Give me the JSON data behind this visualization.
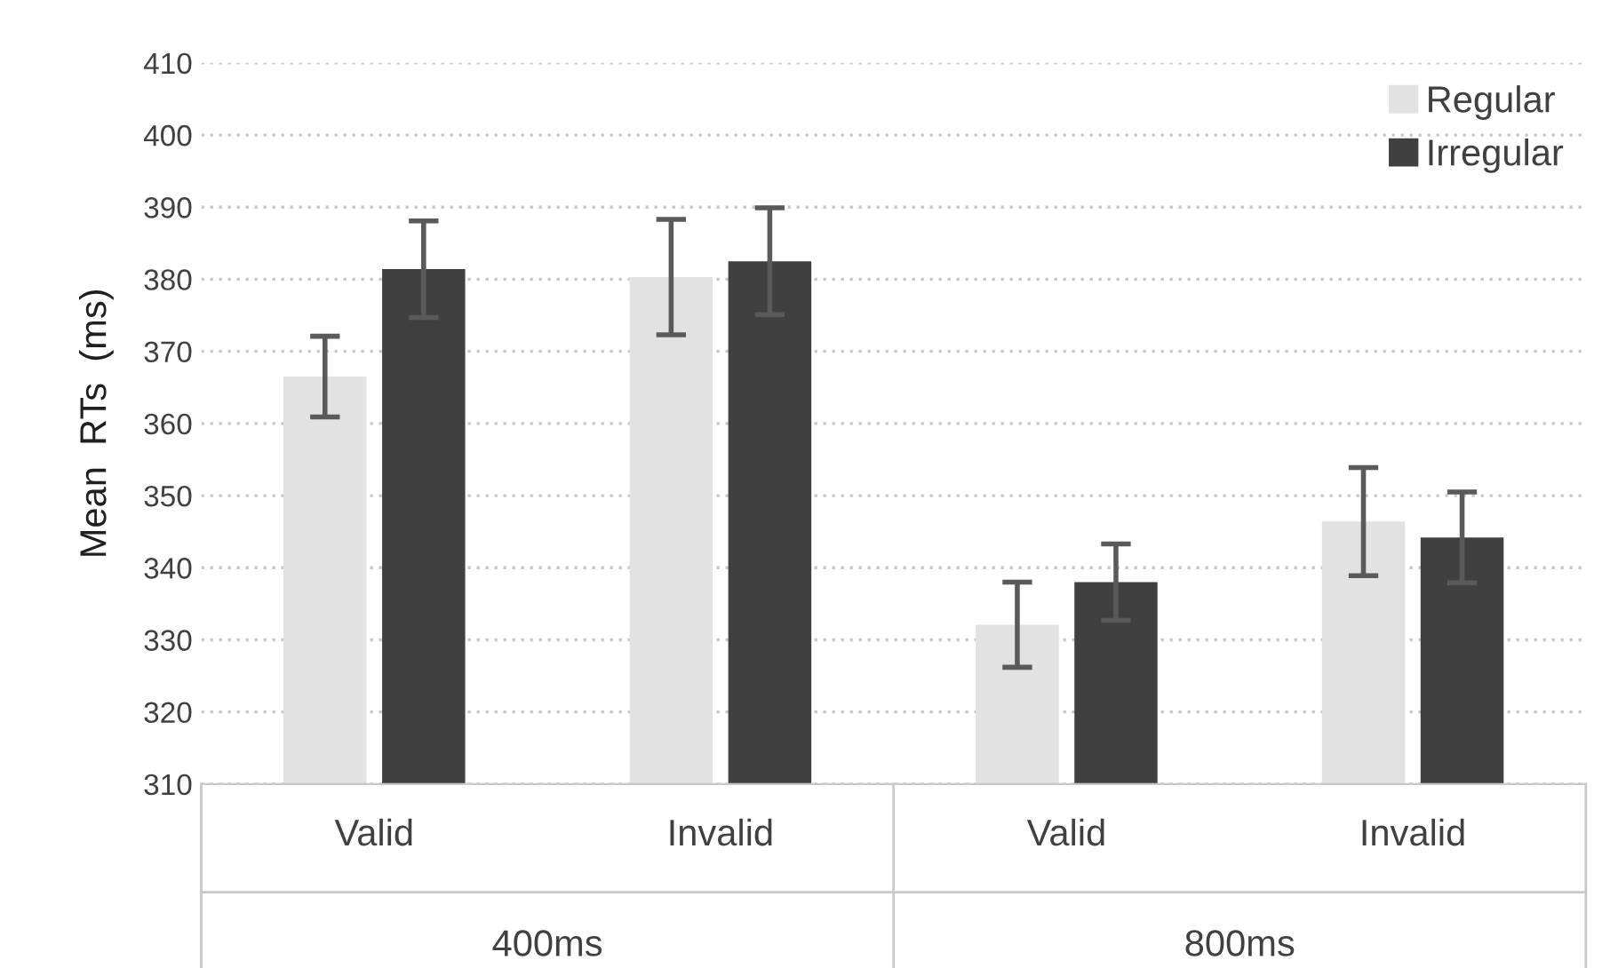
{
  "chart_data": {
    "type": "bar",
    "ylabel": "Mean  RTs  (ms)",
    "categories": [
      "Valid",
      "Invalid",
      "Valid",
      "Invalid"
    ],
    "annotations": [
      "400ms",
      "800ms"
    ],
    "series": [
      {
        "name": "Regular",
        "color": "#e2e2e2",
        "values": [
          366.5,
          380.3,
          332.1,
          346.4
        ],
        "errors": [
          5.6,
          8.0,
          5.9,
          7.5
        ]
      },
      {
        "name": "Irregular",
        "color": "#404040",
        "values": [
          381.4,
          382.5,
          338.0,
          344.2
        ],
        "errors": [
          6.7,
          7.4,
          5.3,
          6.3
        ]
      }
    ],
    "ylim": [
      310,
      410
    ],
    "yticks": [
      310,
      320,
      330,
      340,
      350,
      360,
      370,
      380,
      390,
      400,
      410
    ],
    "grid": "y",
    "legend": "top right"
  }
}
